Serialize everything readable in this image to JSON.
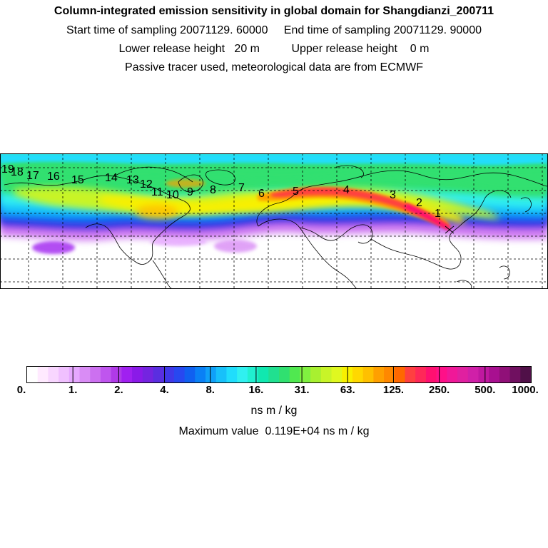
{
  "header": {
    "title": "Column-integrated emission sensitivity in global domain for Shangdianzi_200711",
    "sampling": "Start time of sampling 20071129. 60000     End time of sampling 20071129. 90000",
    "release": "Lower release height   20 m          Upper release height    0 m",
    "note": "Passive tracer used, meteorological data are from ECMWF"
  },
  "map": {
    "trajectory_day_labels": [
      "1",
      "2",
      "3",
      "4",
      "5",
      "6",
      "7",
      "8",
      "9",
      "10",
      "11",
      "12",
      "13",
      "14",
      "15",
      "16",
      "17",
      "18",
      "19"
    ]
  },
  "colorbar": {
    "tick_labels": [
      "0.",
      "1.",
      "2.",
      "4.",
      "8.",
      "16.",
      "31.",
      "63.",
      "125.",
      "250.",
      "500.",
      "1000."
    ],
    "unit": "ns m / kg",
    "colors": [
      "#ffffff",
      "#ffeaff",
      "#f8d6ff",
      "#f0c0ff",
      "#e6a8ff",
      "#d98cf5",
      "#cc70f0",
      "#bf55ee",
      "#b03ae8",
      "#a020f0",
      "#8a1ae8",
      "#7424e0",
      "#5a2ee0",
      "#4038e8",
      "#2848f0",
      "#1060f0",
      "#0a80f5",
      "#10a0f8",
      "#18c0fa",
      "#20ddfc",
      "#30f0f0",
      "#20f0d0",
      "#10e8b0",
      "#20e090",
      "#30e070",
      "#50e850",
      "#80f040",
      "#a8f030",
      "#c8f428",
      "#e0f820",
      "#f8f000",
      "#ffd800",
      "#ffc000",
      "#ffa000",
      "#ff8800",
      "#ff6800",
      "#ff4040",
      "#ff2858",
      "#ff1070",
      "#ff1088",
      "#f01898",
      "#e020a0",
      "#d020a8",
      "#c018a0",
      "#a81090",
      "#901078",
      "#701060",
      "#501048"
    ]
  },
  "max_value": "Maximum value  0.119E+04 ns m / kg"
}
